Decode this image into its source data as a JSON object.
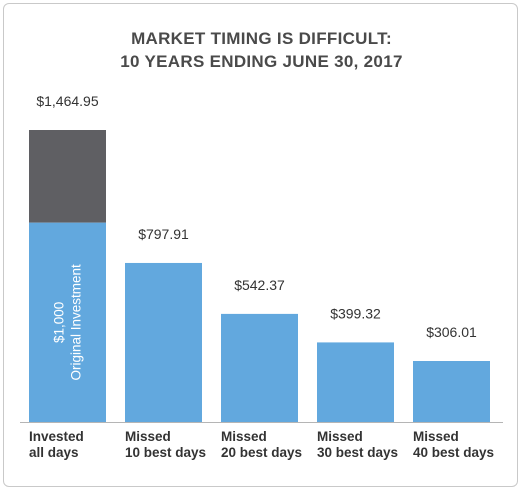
{
  "title_line1": "MARKET TIMING IS DIFFICULT:",
  "title_line2": "10 YEARS ENDING JUNE 30, 2017",
  "chart_data": {
    "type": "bar",
    "categories": [
      [
        "Invested",
        "all days"
      ],
      [
        "Missed",
        "10 best days"
      ],
      [
        "Missed",
        "20 best days"
      ],
      [
        "Missed",
        "30 best days"
      ],
      [
        "Missed",
        "40 best days"
      ]
    ],
    "values": [
      1464.95,
      797.91,
      542.37,
      399.32,
      306.01
    ],
    "value_labels": [
      "$1,464.95",
      "$797.91",
      "$542.37",
      "$399.32",
      "$306.01"
    ],
    "original_investment": 1000,
    "original_investment_label": [
      "$1,000",
      "Original Investment"
    ],
    "ylim": [
      0,
      1464.95
    ],
    "grid": false,
    "colors": {
      "bar": "#62a8de",
      "gain": "#5f5f63",
      "baseline": "#b5b5b5",
      "text": "#333333"
    }
  }
}
